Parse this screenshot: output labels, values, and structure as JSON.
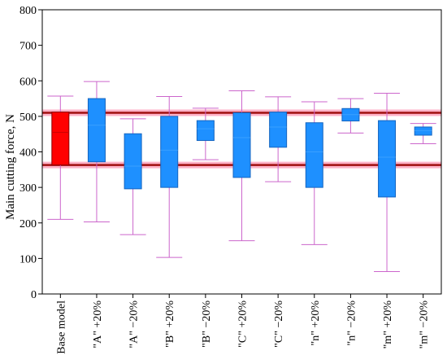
{
  "chart_data": {
    "type": "box",
    "ylabel": "Main cutting force, N",
    "ylim": [
      0,
      800
    ],
    "yticks": [
      0,
      100,
      200,
      300,
      400,
      500,
      600,
      700,
      800
    ],
    "grid": false,
    "legend": "none",
    "reference_lines": [
      510,
      363
    ],
    "colors": {
      "base_box": "#ff0000",
      "box": "#1e90ff",
      "whisker": "#cc66cc",
      "reference_line": "#a01010",
      "reference_band": "#ffb3c8"
    },
    "categories": [
      "Base model",
      "\"A\" +20%",
      "\"A\" −20%",
      "\"B\" +20%",
      "\"B\" −20%",
      "\"C\" +20%",
      "\"C\" −20%",
      "\"n\" +20%",
      "\"n\" −20%",
      "\"m\" +20%",
      "\"m\" −20%"
    ],
    "boxes": [
      {
        "min": 210,
        "q1": 363,
        "median": 455,
        "q3": 512,
        "max": 557
      },
      {
        "min": 203,
        "q1": 372,
        "median": 475,
        "q3": 550,
        "max": 598
      },
      {
        "min": 167,
        "q1": 296,
        "median": 360,
        "q3": 451,
        "max": 493
      },
      {
        "min": 103,
        "q1": 300,
        "median": 405,
        "q3": 500,
        "max": 556
      },
      {
        "min": 378,
        "q1": 432,
        "median": 465,
        "q3": 488,
        "max": 523
      },
      {
        "min": 150,
        "q1": 328,
        "median": 440,
        "q3": 510,
        "max": 572
      },
      {
        "min": 316,
        "q1": 413,
        "median": 470,
        "q3": 512,
        "max": 555
      },
      {
        "min": 139,
        "q1": 300,
        "median": 400,
        "q3": 482,
        "max": 541
      },
      {
        "min": 453,
        "q1": 487,
        "median": 505,
        "q3": 522,
        "max": 550
      },
      {
        "min": 63,
        "q1": 273,
        "median": 385,
        "q3": 488,
        "max": 565
      },
      {
        "min": 423,
        "q1": 447,
        "median": 460,
        "q3": 470,
        "max": 480
      }
    ]
  }
}
